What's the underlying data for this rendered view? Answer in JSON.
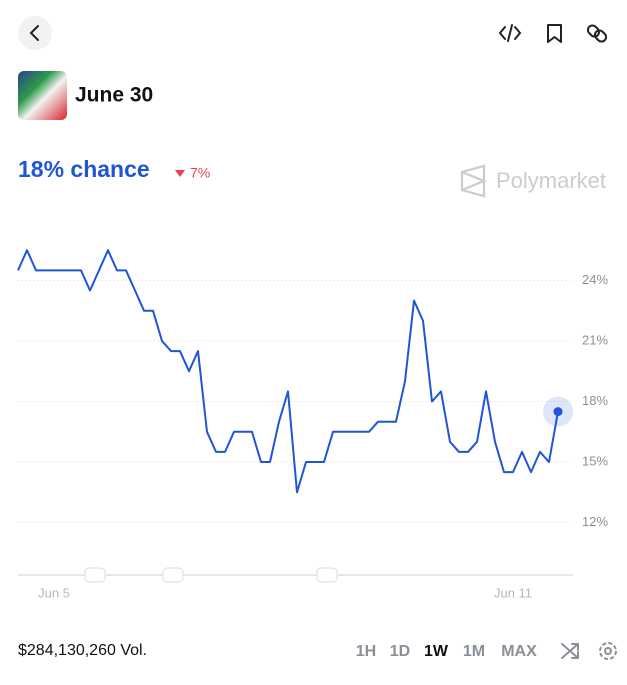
{
  "header": {
    "title": "June 30"
  },
  "headline": {
    "chance": "18% chance",
    "change": "7%",
    "brand": "Polymarket"
  },
  "footer": {
    "volume": "$284,130,260 Vol.",
    "ranges": [
      "1H",
      "1D",
      "1W",
      "1M",
      "MAX"
    ],
    "selected": "1W"
  },
  "chart_data": {
    "type": "line",
    "categories": [
      null,
      null,
      null,
      null,
      "Jun 5",
      null,
      null,
      null,
      null,
      null,
      null,
      null,
      null,
      null,
      null,
      null,
      null,
      null,
      null,
      null,
      null,
      null,
      null,
      null,
      null,
      null,
      null,
      null,
      null,
      null,
      null,
      null,
      null,
      null,
      null,
      null,
      null,
      null,
      null,
      null,
      null,
      null,
      null,
      null,
      null,
      null,
      null,
      null,
      null,
      null,
      null,
      null,
      null,
      null,
      null,
      "Jun 11",
      null,
      null,
      null,
      null,
      null
    ],
    "series": [
      {
        "name": "June 30",
        "color": "#1f55d6",
        "values": [
          24.5,
          25.5,
          24.5,
          24.5,
          24.5,
          24.5,
          24.5,
          24.5,
          23.5,
          24.5,
          25.5,
          24.5,
          24.5,
          23.5,
          22.5,
          22.5,
          21,
          20.5,
          20.5,
          19.5,
          20.5,
          16.5,
          15.5,
          15.5,
          16.5,
          16.5,
          16.5,
          15,
          15,
          17,
          18.5,
          13.5,
          15,
          15,
          15,
          16.5,
          16.5,
          16.5,
          16.5,
          16.5,
          17,
          17,
          17,
          19,
          23,
          22,
          18,
          18.5,
          16,
          15.5,
          15.5,
          16,
          18.5,
          16,
          14.5,
          14.5,
          15.5,
          14.5,
          15.5,
          15,
          17.5
        ]
      }
    ],
    "ylim": [
      9.4,
      26.5
    ],
    "yticks": [
      {
        "value": 12,
        "label": "12%"
      },
      {
        "value": 15,
        "label": "15%"
      },
      {
        "value": 18,
        "label": "18%"
      },
      {
        "value": 21,
        "label": "21%"
      },
      {
        "value": 24,
        "label": "24%"
      }
    ],
    "grid": true
  }
}
